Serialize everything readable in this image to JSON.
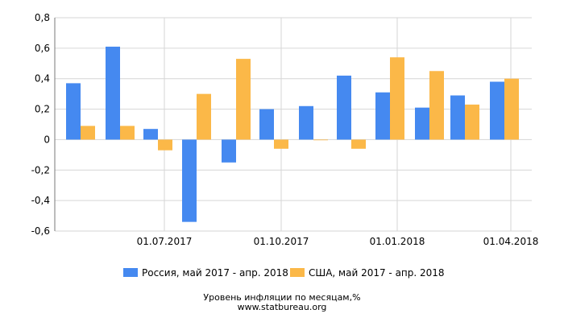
{
  "chart_data": {
    "type": "bar",
    "categories": [
      "2017-05",
      "2017-06",
      "2017-07",
      "2017-08",
      "2017-09",
      "2017-10",
      "2017-11",
      "2017-12",
      "2018-01",
      "2018-02",
      "2018-03",
      "2018-04"
    ],
    "x_tick_labels": [
      "01.07.2017",
      "01.10.2017",
      "01.01.2018",
      "01.04.2018"
    ],
    "y_tick_labels": [
      "0,8",
      "0,6",
      "0,4",
      "0,2",
      "0",
      "-0,2",
      "-0,4",
      "-0,6"
    ],
    "ylim": [
      -0.6,
      0.8
    ],
    "grid": true,
    "legend_position": "bottom",
    "series": [
      {
        "name": "Россия, май 2017 - апр. 2018",
        "color": "#4589f0",
        "values": [
          0.37,
          0.61,
          0.07,
          -0.54,
          -0.15,
          0.2,
          0.22,
          0.42,
          0.31,
          0.21,
          0.29,
          0.38
        ]
      },
      {
        "name": "США, май 2017 - апр. 2018",
        "color": "#fbb848",
        "values": [
          0.09,
          0.09,
          -0.07,
          0.3,
          0.53,
          -0.06,
          0.0,
          -0.06,
          0.54,
          0.45,
          0.23,
          0.4
        ]
      }
    ],
    "title": "Уровень инфляции по месяцам,%",
    "source": "www.statbureau.org"
  }
}
